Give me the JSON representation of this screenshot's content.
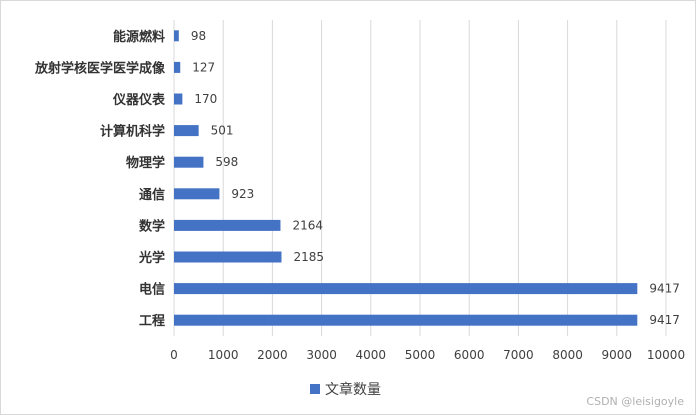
{
  "chart_data": {
    "type": "bar",
    "orientation": "horizontal",
    "categories": [
      "能源燃料",
      "放射学核医学医学成像",
      "仪器仪表",
      "计算机科学",
      "物理学",
      "通信",
      "数学",
      "光学",
      "电信",
      "工程"
    ],
    "series": [
      {
        "name": "文章数量",
        "values": [
          98,
          127,
          170,
          501,
          598,
          923,
          2164,
          2185,
          9417,
          9417
        ],
        "color": "#4472C4"
      }
    ],
    "xlim": [
      0,
      10000
    ],
    "x_ticks": [
      "0",
      "1000",
      "2000",
      "3000",
      "4000",
      "5000",
      "6000",
      "7000",
      "8000",
      "9000",
      "10000"
    ],
    "grid": true,
    "legend_position": "bottom",
    "data_labels": true
  },
  "watermark": "CSDN @leisigoyle"
}
